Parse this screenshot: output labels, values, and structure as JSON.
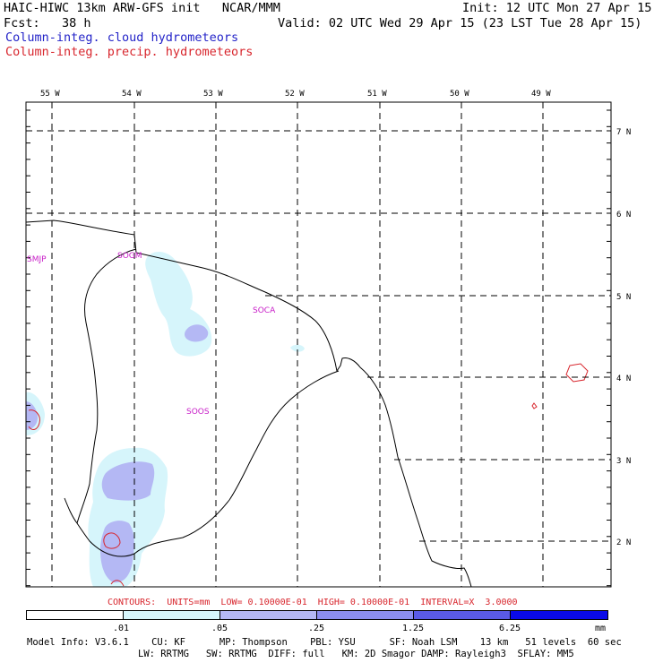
{
  "header": {
    "title": "HAIC-HIWC 13km ARW-GFS init   NCAR/MMM",
    "init": "Init: 12 UTC Mon 27 Apr 15",
    "fcst": "Fcst:   38 h",
    "valid": "Valid: 02 UTC Wed 29 Apr 15 (23 LST Tue 28 Apr 15)",
    "field1": "Column-integ. cloud hydrometeors",
    "field2": "Column-integ. precip. hydrometeors"
  },
  "axes": {
    "lon_labels": [
      "55 W",
      "54 W",
      "53 W",
      "52 W",
      "51 W",
      "50 W",
      "49 W"
    ],
    "lat_labels": [
      "7 N",
      "6 N",
      "5 N",
      "4 N",
      "3 N",
      "2 N"
    ]
  },
  "stations": [
    "SMJP",
    "SOGM",
    "SOCA",
    "SOOS"
  ],
  "contour_info": "CONTOURS:  UNITS=mm  LOW= 0.10000E-01  HIGH= 0.10000E-01  INTERVAL=X  3.0000",
  "colorbar": {
    "labels": [
      ".01",
      ".05",
      ".25",
      "1.25",
      "6.25"
    ],
    "units": "mm",
    "colors": [
      "#ffffff",
      "#d6f5fb",
      "#b4b8f4",
      "#8c8ef0",
      "#5a5ae6",
      "#2a2ae6",
      "#0a0ae8"
    ]
  },
  "footer": {
    "line1": "Model Info: V3.6.1    CU: KF      MP: Thompson    PBL: YSU      SF: Noah LSM    13 km   51 levels  60 sec",
    "line2": "LW: RRTMG   SW: RRTMG  DIFF: full   KM: 2D Smagor DAMP: Rayleigh3  SFLAY: MM5"
  }
}
